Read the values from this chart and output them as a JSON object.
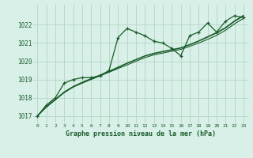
{
  "background_color": "#d8f0e8",
  "grid_color": "#b8d8c8",
  "line_color": "#1a5c2a",
  "marker_color": "#1a5c2a",
  "title": "Graphe pression niveau de la mer (hPa)",
  "xlim": [
    -0.5,
    23.5
  ],
  "ylim": [
    1016.6,
    1023.1
  ],
  "yticks": [
    1017,
    1018,
    1019,
    1020,
    1021,
    1022
  ],
  "xticks": [
    0,
    1,
    2,
    3,
    4,
    5,
    6,
    7,
    8,
    9,
    10,
    11,
    12,
    13,
    14,
    15,
    16,
    17,
    18,
    19,
    20,
    21,
    22,
    23
  ],
  "s1_y": [
    1017.0,
    1017.6,
    1018.0,
    1018.8,
    1019.0,
    1019.1,
    1019.1,
    1019.2,
    1019.5,
    1021.3,
    1021.8,
    1021.6,
    1021.4,
    1021.1,
    1021.0,
    1020.7,
    1020.3,
    1021.4,
    1021.6,
    1022.1,
    1021.6,
    1022.2,
    1022.5,
    1022.4
  ],
  "s2_y": [
    1017.0,
    1017.5,
    1017.9,
    1018.3,
    1018.6,
    1018.8,
    1019.0,
    1019.2,
    1019.4,
    1019.6,
    1019.8,
    1020.0,
    1020.2,
    1020.35,
    1020.45,
    1020.55,
    1020.65,
    1020.82,
    1021.0,
    1021.2,
    1021.42,
    1021.7,
    1022.05,
    1022.35
  ],
  "s3_y": [
    1017.0,
    1017.48,
    1017.88,
    1018.28,
    1018.58,
    1018.82,
    1019.02,
    1019.22,
    1019.42,
    1019.65,
    1019.88,
    1020.08,
    1020.28,
    1020.42,
    1020.52,
    1020.62,
    1020.72,
    1020.9,
    1021.1,
    1021.32,
    1021.55,
    1021.82,
    1022.18,
    1022.48
  ],
  "s4_y": [
    1017.0,
    1017.52,
    1017.92,
    1018.32,
    1018.62,
    1018.85,
    1019.05,
    1019.25,
    1019.45,
    1019.68,
    1019.9,
    1020.1,
    1020.3,
    1020.44,
    1020.54,
    1020.64,
    1020.74,
    1020.92,
    1021.12,
    1021.35,
    1021.58,
    1021.85,
    1022.22,
    1022.52
  ]
}
